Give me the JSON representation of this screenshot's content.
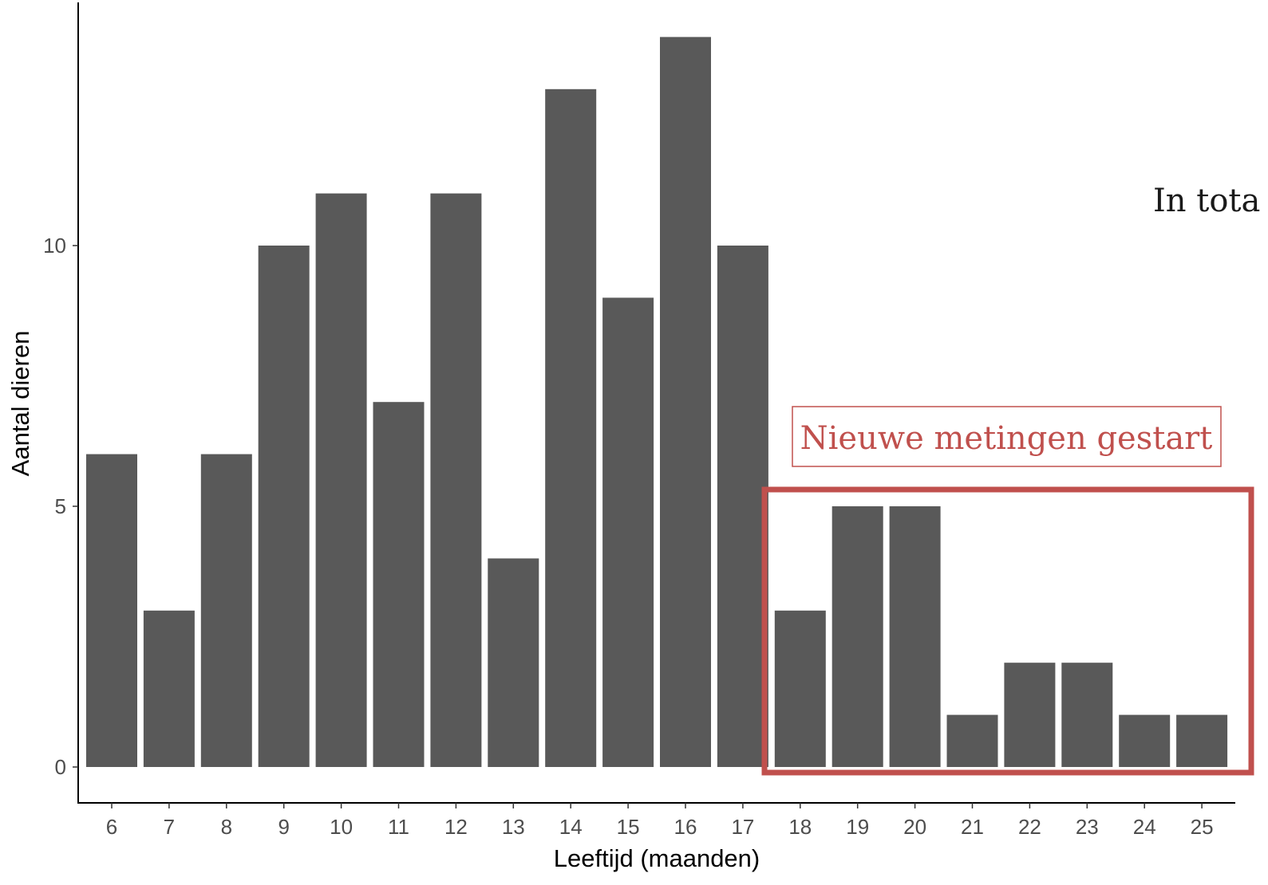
{
  "chart_data": {
    "type": "bar",
    "title": "",
    "xlabel": "Leeftijd (maanden)",
    "ylabel": "Aantal dieren",
    "categories": [
      "6",
      "7",
      "8",
      "9",
      "10",
      "11",
      "12",
      "13",
      "14",
      "15",
      "16",
      "17",
      "18",
      "19",
      "20",
      "21",
      "22",
      "23",
      "24",
      "25"
    ],
    "values": [
      6,
      3,
      6,
      10,
      11,
      7,
      11,
      4,
      13,
      9,
      14,
      10,
      3,
      5,
      5,
      1,
      2,
      2,
      1,
      1
    ],
    "y_ticks": [
      0,
      5,
      10
    ],
    "ylim": [
      0,
      14
    ],
    "grid": false,
    "bar_color": "#595959",
    "annotation": {
      "text": "Nieuwe metingen gestart",
      "color": "#c0504d",
      "highlight_categories": [
        "18",
        "19",
        "20",
        "21",
        "22",
        "23",
        "24",
        "25"
      ]
    },
    "side_text": "In tota"
  }
}
